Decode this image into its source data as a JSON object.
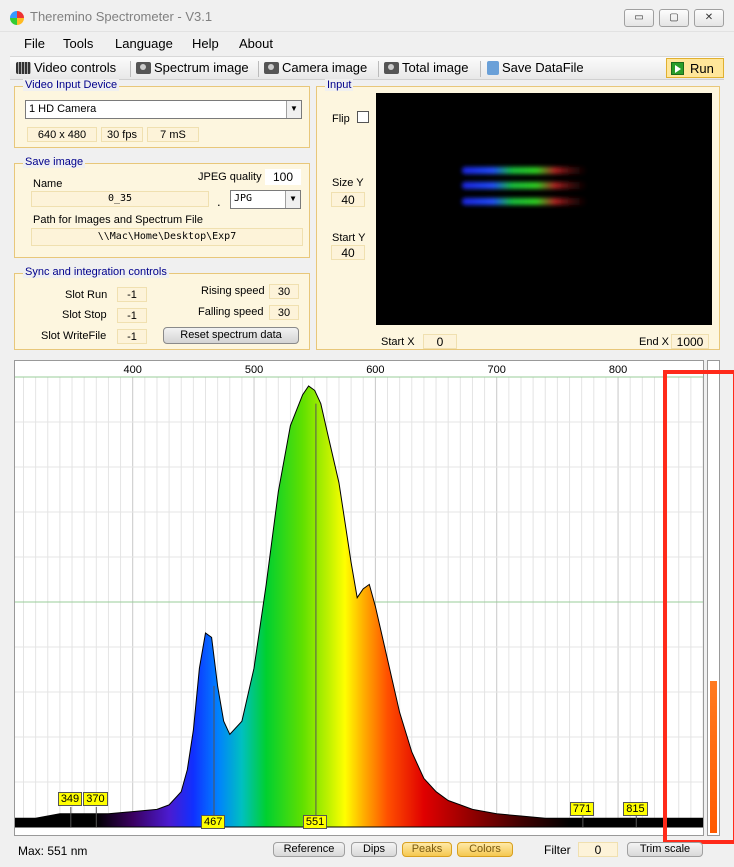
{
  "window": {
    "title": "Theremino Spectrometer - V3.1",
    "controls": [
      "▭",
      "▢",
      "✕"
    ]
  },
  "menu": [
    "File",
    "Tools",
    "Language",
    "Help",
    "About"
  ],
  "toolbar": {
    "video_controls": "Video controls",
    "spectrum_image": "Spectrum image",
    "camera_image": "Camera image",
    "total_image": "Total image",
    "save_datafile": "Save DataFile",
    "run": "Run"
  },
  "video_input": {
    "title": "Video Input Device",
    "device": "1 HD Camera",
    "resolution": "640 x 480",
    "fps": "30 fps",
    "exposure": "7 mS"
  },
  "save_image": {
    "title": "Save image",
    "name_label": "Name",
    "name_value": "0_35",
    "jpeg_quality_label": "JPEG quality",
    "jpeg_quality_value": "100",
    "dot": ".",
    "format": "JPG",
    "path_label": "Path for Images and Spectrum File",
    "path_value": "\\\\Mac\\Home\\Desktop\\Exp7"
  },
  "sync": {
    "title": "Sync and integration controls",
    "slot_run_label": "Slot Run",
    "slot_run_value": "-1",
    "slot_stop_label": "Slot Stop",
    "slot_stop_value": "-1",
    "slot_writefile_label": "Slot WriteFile",
    "slot_writefile_value": "-1",
    "rising_speed_label": "Rising speed",
    "rising_speed_value": "30",
    "falling_speed_label": "Falling speed",
    "falling_speed_value": "30",
    "reset_button": "Reset spectrum data"
  },
  "input": {
    "title": "Input",
    "flip_label": "Flip",
    "size_y_label": "Size Y",
    "size_y_value": "40",
    "start_y_label": "Start Y",
    "start_y_value": "40",
    "start_x_label": "Start X",
    "start_x_value": "0",
    "end_x_label": "End X",
    "end_x_value": "1000"
  },
  "chart_data": {
    "type": "area",
    "x_ticks": [
      "400",
      "500",
      "600",
      "700",
      "800"
    ],
    "xlim": [
      303,
      870
    ],
    "x": [
      303,
      320,
      340,
      360,
      380,
      400,
      420,
      430,
      440,
      445,
      450,
      455,
      460,
      465,
      470,
      475,
      480,
      490,
      500,
      510,
      520,
      530,
      540,
      545,
      550,
      555,
      560,
      570,
      580,
      585,
      590,
      595,
      600,
      610,
      620,
      630,
      640,
      650,
      660,
      670,
      680,
      700,
      720,
      740,
      760,
      780,
      800,
      820,
      840,
      860,
      870
    ],
    "y": [
      0.02,
      0.02,
      0.03,
      0.03,
      0.03,
      0.035,
      0.04,
      0.05,
      0.08,
      0.13,
      0.22,
      0.36,
      0.44,
      0.43,
      0.32,
      0.24,
      0.21,
      0.24,
      0.36,
      0.55,
      0.76,
      0.91,
      0.98,
      1.0,
      0.99,
      0.96,
      0.9,
      0.78,
      0.6,
      0.52,
      0.54,
      0.55,
      0.5,
      0.38,
      0.26,
      0.17,
      0.11,
      0.08,
      0.06,
      0.05,
      0.04,
      0.03,
      0.025,
      0.02,
      0.02,
      0.02,
      0.02,
      0.02,
      0.02,
      0.02,
      0.02
    ],
    "peaks": [
      "349",
      "370",
      "467",
      "551",
      "771",
      "815"
    ],
    "peak_values": [
      349,
      370,
      467,
      551,
      771,
      815
    ],
    "grid": true
  },
  "status": {
    "max": "Max: 551 nm",
    "reference": "Reference",
    "dips": "Dips",
    "peaks": "Peaks",
    "colors": "Colors",
    "filter_label": "Filter",
    "filter_value": "0",
    "trim_scale": "Trim scale"
  },
  "meter": {
    "level": 0.32
  }
}
